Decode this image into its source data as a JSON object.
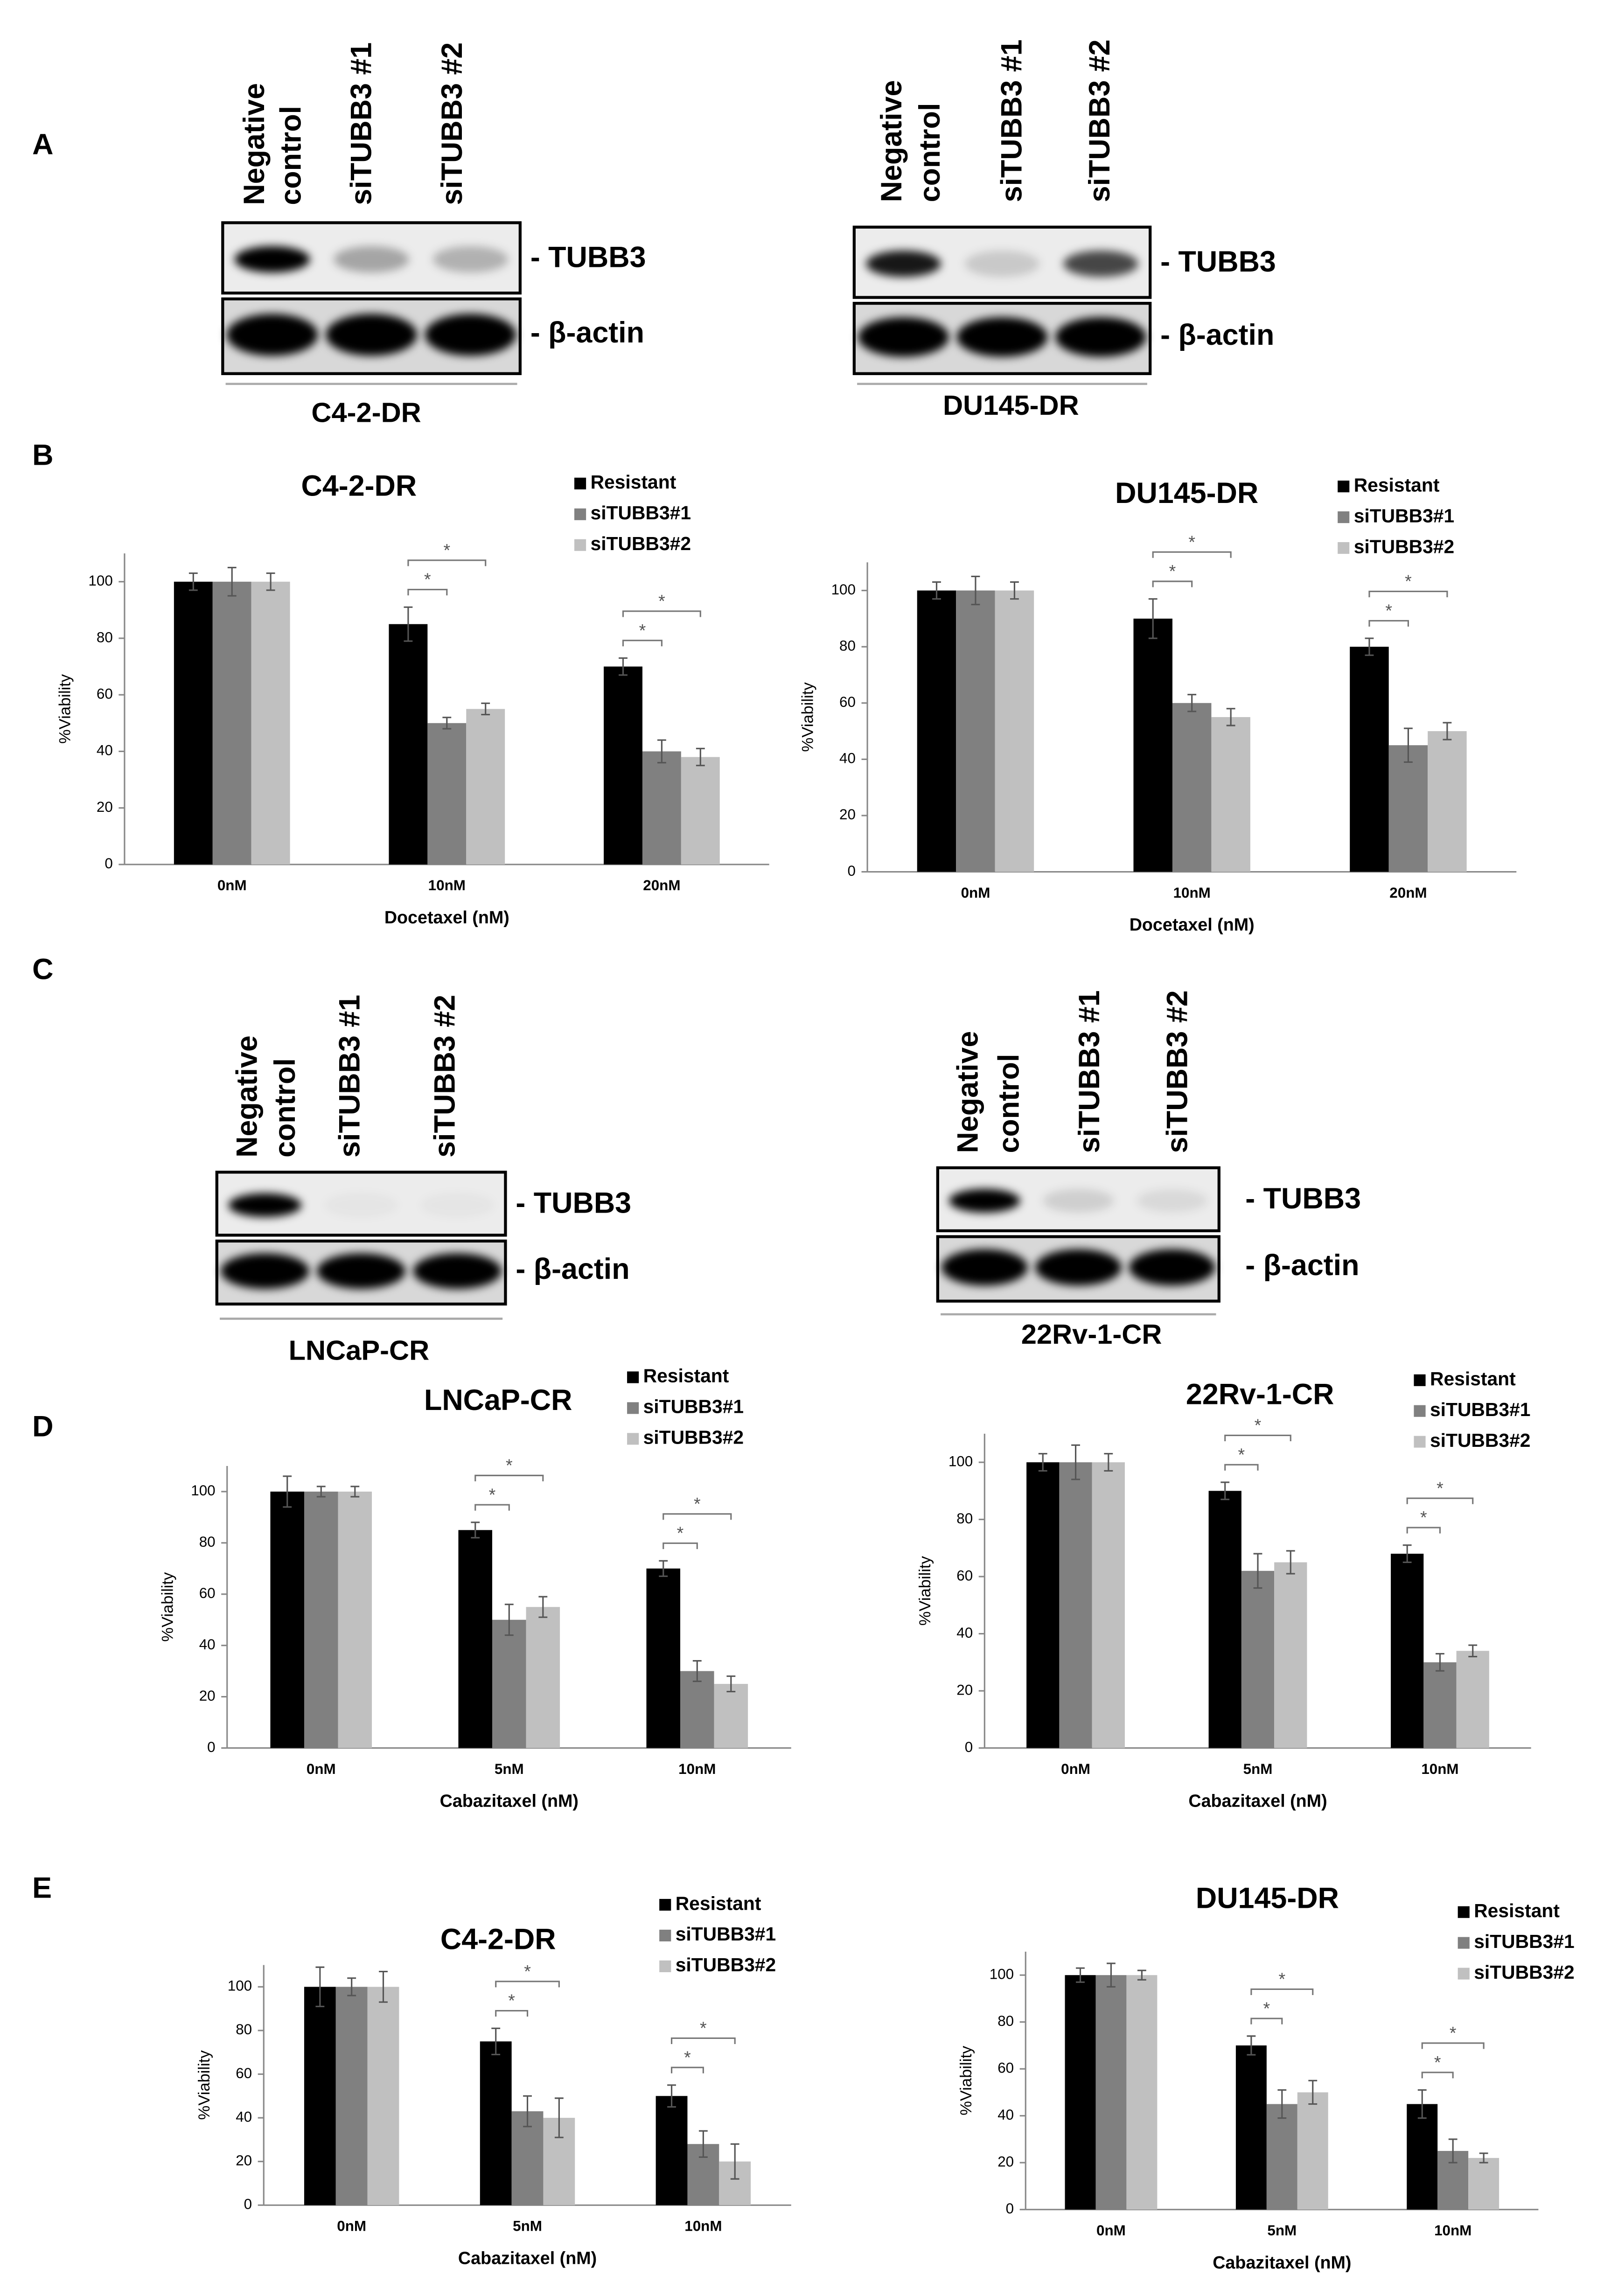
{
  "panels": [
    "A",
    "B",
    "C",
    "D",
    "E"
  ],
  "blots": [
    {
      "lanes": [
        [
          "Negative",
          "control"
        ],
        [
          "siTUBB3 #1"
        ],
        [
          "siTUBB3 #2"
        ]
      ],
      "bands": [
        "- TUBB3",
        "- β-actin"
      ],
      "cell_line": "C4-2-DR"
    },
    {
      "lanes": [
        [
          "Negative",
          "control"
        ],
        [
          "siTUBB3 #1"
        ],
        [
          "siTUBB3 #2"
        ]
      ],
      "bands": [
        "- TUBB3",
        "- β-actin"
      ],
      "cell_line": "DU145-DR"
    },
    {
      "lanes": [
        [
          "Negative",
          "control"
        ],
        [
          "siTUBB3 #1"
        ],
        [
          "siTUBB3 #2"
        ]
      ],
      "bands": [
        "- TUBB3",
        "- β-actin"
      ],
      "cell_line": "LNCaP-CR"
    },
    {
      "lanes": [
        [
          "Negative",
          "control"
        ],
        [
          "siTUBB3 #1"
        ],
        [
          "siTUBB3 #2"
        ]
      ],
      "bands": [
        "- TUBB3",
        "- β-actin"
      ],
      "cell_line": "22Rv-1-CR"
    }
  ],
  "chart_data": [
    {
      "type": "bar",
      "title": "C4-2-DR",
      "xlabel": "Docetaxel (nM)",
      "ylabel": "%Viability",
      "categories": [
        "0nM",
        "10nM",
        "20nM"
      ],
      "ylim": [
        0,
        110
      ],
      "yticks": [
        0,
        20,
        40,
        60,
        80,
        100
      ],
      "annotations": [
        "*",
        "*",
        "*",
        "*"
      ],
      "series": [
        {
          "name": "Resistant",
          "color": "#000000",
          "values": [
            100,
            85,
            70
          ],
          "errors": [
            3,
            6,
            3
          ]
        },
        {
          "name": "siTUBB3#1",
          "color": "#808080",
          "values": [
            100,
            50,
            40
          ],
          "errors": [
            5,
            2,
            4
          ]
        },
        {
          "name": "siTUBB3#2",
          "color": "#c0c0c0",
          "values": [
            100,
            55,
            38
          ],
          "errors": [
            3,
            2,
            3
          ]
        }
      ]
    },
    {
      "type": "bar",
      "title": "DU145-DR",
      "xlabel": "Docetaxel (nM)",
      "ylabel": "%Viability",
      "categories": [
        "0nM",
        "10nM",
        "20nM"
      ],
      "ylim": [
        0,
        110
      ],
      "yticks": [
        0,
        20,
        40,
        60,
        80,
        100
      ],
      "annotations": [
        "*",
        "*",
        "*",
        "*"
      ],
      "series": [
        {
          "name": "Resistant",
          "color": "#000000",
          "values": [
            100,
            90,
            80
          ],
          "errors": [
            3,
            7,
            3
          ]
        },
        {
          "name": "siTUBB3#1",
          "color": "#808080",
          "values": [
            100,
            60,
            45
          ],
          "errors": [
            5,
            3,
            6
          ]
        },
        {
          "name": "siTUBB3#2",
          "color": "#c0c0c0",
          "values": [
            100,
            55,
            50
          ],
          "errors": [
            3,
            3,
            3
          ]
        }
      ]
    },
    {
      "type": "bar",
      "title": "LNCaP-CR",
      "xlabel": "Cabazitaxel (nM)",
      "ylabel": "%Viability",
      "categories": [
        "0nM",
        "5nM",
        "10nM"
      ],
      "ylim": [
        0,
        110
      ],
      "yticks": [
        0,
        20,
        40,
        60,
        80,
        100
      ],
      "annotations": [
        "*",
        "*",
        "*",
        "*"
      ],
      "series": [
        {
          "name": "Resistant",
          "color": "#000000",
          "values": [
            100,
            85,
            70
          ],
          "errors": [
            6,
            3,
            3
          ]
        },
        {
          "name": "siTUBB3#1",
          "color": "#808080",
          "values": [
            100,
            50,
            30
          ],
          "errors": [
            2,
            6,
            4
          ]
        },
        {
          "name": "siTUBB3#2",
          "color": "#c0c0c0",
          "values": [
            100,
            55,
            25
          ],
          "errors": [
            2,
            4,
            3
          ]
        }
      ]
    },
    {
      "type": "bar",
      "title": "22Rv-1-CR",
      "xlabel": "Cabazitaxel (nM)",
      "ylabel": "%Viability",
      "categories": [
        "0nM",
        "5nM",
        "10nM"
      ],
      "ylim": [
        0,
        110
      ],
      "yticks": [
        0,
        20,
        40,
        60,
        80,
        100
      ],
      "annotations": [
        "*",
        "*",
        "*",
        "*"
      ],
      "series": [
        {
          "name": "Resistant",
          "color": "#000000",
          "values": [
            100,
            90,
            68
          ],
          "errors": [
            3,
            3,
            3
          ]
        },
        {
          "name": "siTUBB3#1",
          "color": "#808080",
          "values": [
            100,
            62,
            30
          ],
          "errors": [
            6,
            6,
            3
          ]
        },
        {
          "name": "siTUBB3#2",
          "color": "#c0c0c0",
          "values": [
            100,
            65,
            34
          ],
          "errors": [
            3,
            4,
            2
          ]
        }
      ]
    },
    {
      "type": "bar",
      "title": "C4-2-DR",
      "xlabel": "Cabazitaxel (nM)",
      "ylabel": "%Viability",
      "categories": [
        "0nM",
        "5nM",
        "10nM"
      ],
      "ylim": [
        0,
        110
      ],
      "yticks": [
        0,
        20,
        40,
        60,
        80,
        100
      ],
      "annotations": [
        "*",
        "*",
        "*",
        "*"
      ],
      "series": [
        {
          "name": "Resistant",
          "color": "#000000",
          "values": [
            100,
            75,
            50
          ],
          "errors": [
            9,
            6,
            5
          ]
        },
        {
          "name": "siTUBB3#1",
          "color": "#808080",
          "values": [
            100,
            43,
            28
          ],
          "errors": [
            4,
            7,
            6
          ]
        },
        {
          "name": "siTUBB3#2",
          "color": "#c0c0c0",
          "values": [
            100,
            40,
            20
          ],
          "errors": [
            7,
            9,
            8
          ]
        }
      ]
    },
    {
      "type": "bar",
      "title": "DU145-DR",
      "xlabel": "Cabazitaxel (nM)",
      "ylabel": "%Viability",
      "categories": [
        "0nM",
        "5nM",
        "10nM"
      ],
      "ylim": [
        0,
        110
      ],
      "yticks": [
        0,
        20,
        40,
        60,
        80,
        100
      ],
      "annotations": [
        "*",
        "*",
        "*",
        "*"
      ],
      "series": [
        {
          "name": "Resistant",
          "color": "#000000",
          "values": [
            100,
            70,
            45
          ],
          "errors": [
            3,
            4,
            6
          ]
        },
        {
          "name": "siTUBB3#1",
          "color": "#808080",
          "values": [
            100,
            45,
            25
          ],
          "errors": [
            5,
            6,
            5
          ]
        },
        {
          "name": "siTUBB3#2",
          "color": "#c0c0c0",
          "values": [
            100,
            50,
            22
          ],
          "errors": [
            2,
            5,
            2
          ]
        }
      ]
    }
  ]
}
